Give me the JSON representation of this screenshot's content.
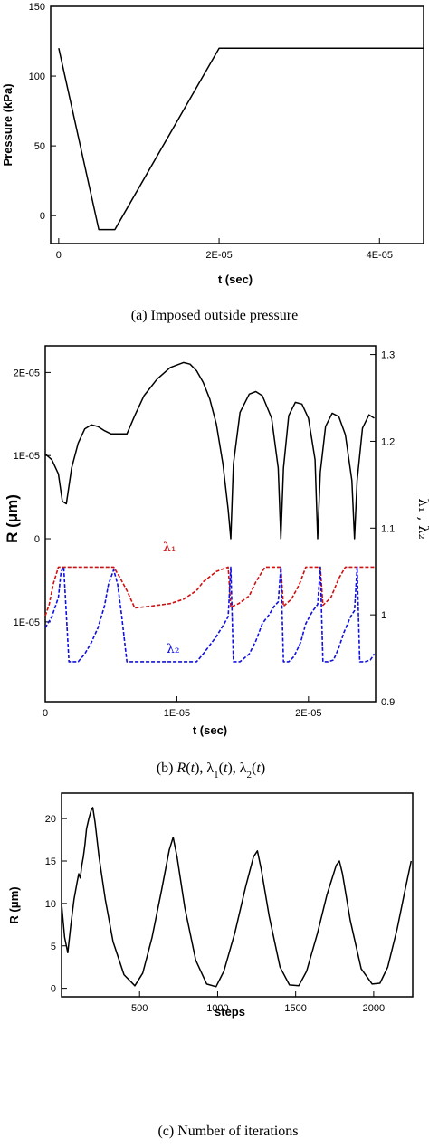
{
  "chart_data": [
    {
      "type": "line",
      "xlabel": "t (sec)",
      "ylabel": "Pressure (kPa)",
      "xlim": [
        -1e-06,
        4.55e-05
      ],
      "ylim": [
        -20,
        150
      ],
      "x_ticks": [
        {
          "value": 0,
          "label": "0"
        },
        {
          "value": 2e-05,
          "label": "2E-05"
        },
        {
          "value": 4e-05,
          "label": "4E-05"
        }
      ],
      "y_ticks": [
        {
          "value": 0,
          "label": "0"
        },
        {
          "value": 50,
          "label": "50"
        },
        {
          "value": 100,
          "label": "100"
        },
        {
          "value": 150,
          "label": "150"
        }
      ],
      "series": [
        {
          "color": "#000000",
          "dash": "solid",
          "x": [
            0,
            5e-06,
            7e-06,
            2e-05,
            4.55e-05
          ],
          "y": [
            120,
            -10,
            -10,
            120,
            120
          ]
        }
      ],
      "caption": "(a)  Imposed outside pressure"
    },
    {
      "type": "line",
      "xlabel": "t (sec)",
      "ylabel": "R (μm)",
      "ylabel_right": "λ₁ , λ₂",
      "xlim": [
        0,
        2.51e-05
      ],
      "ylim": [
        -1.96e-05,
        2.32e-05
      ],
      "ylim_right": [
        0.9,
        1.31
      ],
      "x_ticks": [
        {
          "value": 0,
          "label": "0"
        },
        {
          "value": 1e-05,
          "label": "1E-05"
        },
        {
          "value": 2e-05,
          "label": "2E-05"
        }
      ],
      "y_ticks": [
        {
          "value": -1e-05,
          "label": "1E-05"
        },
        {
          "value": 0,
          "label": "0"
        },
        {
          "value": 1e-05,
          "label": "1E-05"
        },
        {
          "value": 2e-05,
          "label": "2E-05"
        }
      ],
      "y_ticks_right": [
        {
          "value": 0.9,
          "label": "0.9"
        },
        {
          "value": 1.0,
          "label": "1"
        },
        {
          "value": 1.1,
          "label": "1.1"
        },
        {
          "value": 1.2,
          "label": "1.2"
        },
        {
          "value": 1.3,
          "label": "1.3"
        }
      ],
      "series": [
        {
          "color": "#000000",
          "dash": "solid",
          "axis": "left",
          "x": [
            0,
            5e-07,
            1e-06,
            1.3e-06,
            1.6e-06,
            2e-06,
            2.5e-06,
            3e-06,
            3.5e-06,
            4e-06,
            4.5e-06,
            5e-06,
            5.5e-06,
            6.2e-06,
            6.8e-06,
            7.5e-06,
            8.5e-06,
            9.5e-06,
            1.05e-05,
            1.1e-05,
            1.15e-05,
            1.2e-05,
            1.25e-05,
            1.3e-05,
            1.35e-05,
            1.39e-05,
            1.41e-05,
            1.43e-05,
            1.48e-05,
            1.55e-05,
            1.6e-05,
            1.65e-05,
            1.72e-05,
            1.77e-05,
            1.79e-05,
            1.81e-05,
            1.85e-05,
            1.9e-05,
            1.95e-05,
            2e-05,
            2.05e-05,
            2.07e-05,
            2.09e-05,
            2.13e-05,
            2.18e-05,
            2.23e-05,
            2.28e-05,
            2.33e-05,
            2.35e-05,
            2.37e-05,
            2.41e-05,
            2.46e-05,
            2.5e-05
          ],
          "y": [
            1.02e-05,
            9.5e-06,
            7.8e-06,
            4.5e-06,
            4.2e-06,
            8.5e-06,
            1.15e-05,
            1.32e-05,
            1.37e-05,
            1.35e-05,
            1.3e-05,
            1.26e-05,
            1.26e-05,
            1.26e-05,
            1.48e-05,
            1.72e-05,
            1.92e-05,
            2.06e-05,
            2.12e-05,
            2.1e-05,
            2.02e-05,
            1.88e-05,
            1.68e-05,
            1.38e-05,
            9e-06,
            3.5e-06,
            0,
            9e-06,
            1.52e-05,
            1.74e-05,
            1.77e-05,
            1.72e-05,
            1.45e-05,
            8.5e-06,
            0,
            8.5e-06,
            1.48e-05,
            1.64e-05,
            1.62e-05,
            1.45e-05,
            9.5e-06,
            0,
            8e-06,
            1.35e-05,
            1.51e-05,
            1.47e-05,
            1.25e-05,
            7e-06,
            0,
            7e-06,
            1.33e-05,
            1.49e-05,
            1.45e-05
          ]
        },
        {
          "name": "λ₁",
          "color": "#d01010",
          "dash": "dashed",
          "axis": "right",
          "x": [
            0,
            3e-07,
            6e-07,
            1e-06,
            1.5e-06,
            2e-06,
            2.5e-06,
            3.5e-06,
            4.5e-06,
            5.2e-06,
            5.6e-06,
            6.2e-06,
            6.8e-06,
            8e-06,
            9.5e-06,
            1.05e-05,
            1.15e-05,
            1.2e-05,
            1.3e-05,
            1.39e-05,
            1.41e-05,
            1.47e-05,
            1.55e-05,
            1.6e-05,
            1.67e-05,
            1.73e-05,
            1.77e-05,
            1.79e-05,
            1.81e-05,
            1.87e-05,
            1.93e-05,
            1.98e-05,
            2.03e-05,
            2.07e-05,
            2.09e-05,
            2.11e-05,
            2.17e-05,
            2.23e-05,
            2.28e-05,
            2.33e-05,
            2.35e-05,
            2.37e-05,
            2.4e-05,
            2.44e-05,
            2.5e-05
          ],
          "y": [
            0.999,
            1.012,
            1.035,
            1.055,
            1.055,
            1.055,
            1.055,
            1.055,
            1.055,
            1.055,
            1.045,
            1.028,
            1.008,
            1.01,
            1.013,
            1.018,
            1.028,
            1.038,
            1.05,
            1.055,
            1.009,
            1.013,
            1.022,
            1.038,
            1.055,
            1.055,
            1.055,
            1.055,
            1.01,
            1.018,
            1.035,
            1.055,
            1.055,
            1.055,
            1.055,
            1.011,
            1.02,
            1.042,
            1.055,
            1.055,
            1.055,
            1.055,
            1.055,
            1.055,
            1.055
          ]
        },
        {
          "name": "λ₂",
          "color": "#1010e0",
          "dash": "dashed",
          "axis": "right",
          "x": [
            0,
            5e-07,
            1e-06,
            1.2e-06,
            1.4e-06,
            1.8e-06,
            2e-06,
            2.5e-06,
            3e-06,
            3.5e-06,
            4e-06,
            4.5e-06,
            4.8e-06,
            5.2e-06,
            5.5e-06,
            5.8e-06,
            6.2e-06,
            7e-06,
            8.5e-06,
            1e-05,
            1.1e-05,
            1.15e-05,
            1.2e-05,
            1.3e-05,
            1.36e-05,
            1.39e-05,
            1.41e-05,
            1.43e-05,
            1.48e-05,
            1.55e-05,
            1.6e-05,
            1.65e-05,
            1.7e-05,
            1.74e-05,
            1.77e-05,
            1.79e-05,
            1.81e-05,
            1.85e-05,
            1.89e-05,
            1.94e-05,
            1.98e-05,
            2.03e-05,
            2.07e-05,
            2.09e-05,
            2.11e-05,
            2.15e-05,
            2.19e-05,
            2.23e-05,
            2.27e-05,
            2.32e-05,
            2.35e-05,
            2.37e-05,
            2.39e-05,
            2.43e-05,
            2.47e-05,
            2.5e-05
          ],
          "y": [
            0.985,
            0.998,
            1.02,
            1.05,
            1.055,
            0.946,
            0.946,
            0.946,
            0.955,
            0.968,
            0.985,
            1.01,
            1.035,
            1.052,
            1.035,
            1.0,
            0.946,
            0.946,
            0.946,
            0.946,
            0.946,
            0.946,
            0.955,
            0.975,
            0.99,
            0.998,
            1.055,
            0.946,
            0.946,
            0.955,
            0.97,
            0.99,
            1.0,
            1.01,
            1.015,
            1.055,
            0.946,
            0.946,
            0.952,
            0.968,
            0.99,
            1.004,
            1.012,
            1.055,
            0.946,
            0.946,
            0.948,
            0.962,
            0.98,
            0.998,
            1.005,
            1.055,
            0.946,
            0.946,
            0.948,
            0.955
          ]
        }
      ],
      "caption_parts": [
        {
          "text": "(b)  ",
          "italic": false
        },
        {
          "text": "R",
          "italic": true
        },
        {
          "text": "(",
          "italic": false
        },
        {
          "text": "t",
          "italic": true
        },
        {
          "text": "), λ",
          "italic": false
        },
        {
          "text": "1",
          "italic": false,
          "sub": true
        },
        {
          "text": "(",
          "italic": false
        },
        {
          "text": "t",
          "italic": true
        },
        {
          "text": "), λ",
          "italic": false
        },
        {
          "text": "2",
          "italic": false,
          "sub": true
        },
        {
          "text": "(",
          "italic": false
        },
        {
          "text": "t",
          "italic": true
        },
        {
          "text": ")",
          "italic": false
        }
      ]
    },
    {
      "type": "line",
      "xlabel": "steps",
      "ylabel": "R (μm)",
      "xlim": [
        0,
        2250
      ],
      "ylim": [
        -1,
        23
      ],
      "x_ticks": [
        {
          "value": 500,
          "label": "500"
        },
        {
          "value": 1000,
          "label": "1000"
        },
        {
          "value": 1500,
          "label": "1500"
        },
        {
          "value": 2000,
          "label": "2000"
        }
      ],
      "y_ticks": [
        {
          "value": 0,
          "label": "0"
        },
        {
          "value": 5,
          "label": "5"
        },
        {
          "value": 10,
          "label": "10"
        },
        {
          "value": 15,
          "label": "15"
        },
        {
          "value": 20,
          "label": "20"
        }
      ],
      "series": [
        {
          "color": "#000000",
          "dash": "solid",
          "x": [
            0,
            20,
            40,
            60,
            80,
            100,
            110,
            120,
            130,
            140,
            150,
            160,
            175,
            190,
            200,
            215,
            240,
            280,
            330,
            400,
            470,
            520,
            580,
            640,
            690,
            715,
            740,
            790,
            860,
            930,
            990,
            1040,
            1110,
            1180,
            1230,
            1255,
            1280,
            1330,
            1400,
            1460,
            1520,
            1570,
            1640,
            1700,
            1760,
            1780,
            1800,
            1850,
            1920,
            1990,
            2040,
            2090,
            2150,
            2200,
            2240
          ],
          "y": [
            10,
            6,
            4.2,
            7.5,
            10.5,
            12.5,
            13.5,
            13,
            14.5,
            15.5,
            17,
            18.8,
            20,
            21,
            21.3,
            19.5,
            15.5,
            10.5,
            5.5,
            1.6,
            0.3,
            1.8,
            6,
            11.5,
            16.3,
            17.8,
            15.5,
            9.5,
            3.3,
            0.5,
            0.2,
            2,
            6.5,
            12,
            15.5,
            16.2,
            14,
            8.5,
            2.5,
            0.4,
            0.3,
            2,
            6.5,
            11,
            14.5,
            15,
            13.5,
            8,
            2.3,
            0.5,
            0.6,
            2.5,
            7,
            11.5,
            15
          ]
        }
      ],
      "caption": "(c)  Number of iterations"
    }
  ],
  "annotations": {
    "lambda1_label": "λ₁",
    "lambda2_label": "λ₂"
  }
}
